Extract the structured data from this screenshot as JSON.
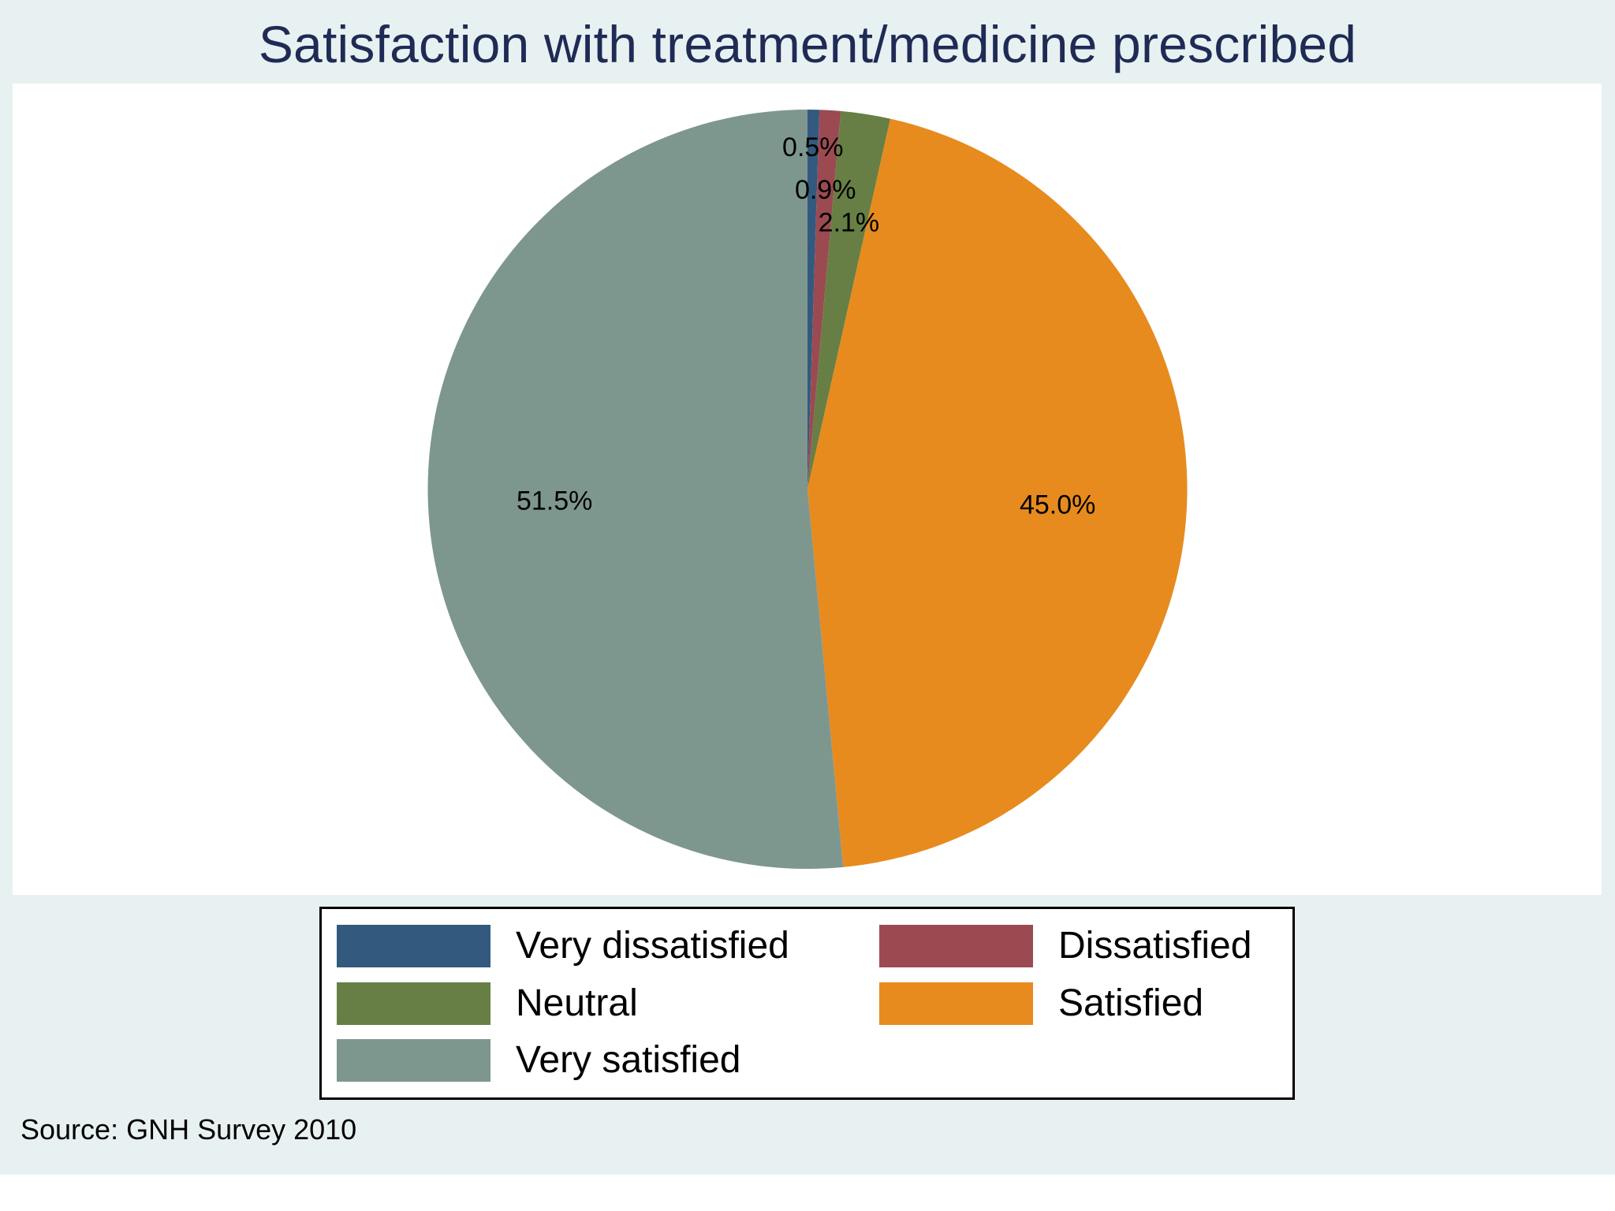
{
  "chart_data": {
    "type": "pie",
    "title": "Satisfaction with treatment/medicine prescribed",
    "note": "Source: GNH Survey 2010",
    "start": "12 o'clock",
    "direction": "clockwise",
    "slices": [
      {
        "name": "Very dissatisfied",
        "value": 0.5,
        "label": "0.5%",
        "color": "#335a7e"
      },
      {
        "name": "Dissatisfied",
        "value": 0.9,
        "label": "0.9%",
        "color": "#9b4a51"
      },
      {
        "name": "Neutral",
        "value": 2.1,
        "label": "2.1%",
        "color": "#677f45"
      },
      {
        "name": "Satisfied",
        "value": 45.0,
        "label": "45.0%",
        "color": "#e78b1e"
      },
      {
        "name": "Very satisfied",
        "value": 51.5,
        "label": "51.5%",
        "color": "#7e978e"
      }
    ],
    "legend": {
      "position": "bottom",
      "columns": 2,
      "entries": [
        "Very dissatisfied",
        "Dissatisfied",
        "Neutral",
        "Satisfied",
        "Very satisfied"
      ]
    }
  },
  "colors": {
    "background": "#e8f1f1",
    "plot_background": "#ffffff",
    "title": "#1f2b55"
  }
}
